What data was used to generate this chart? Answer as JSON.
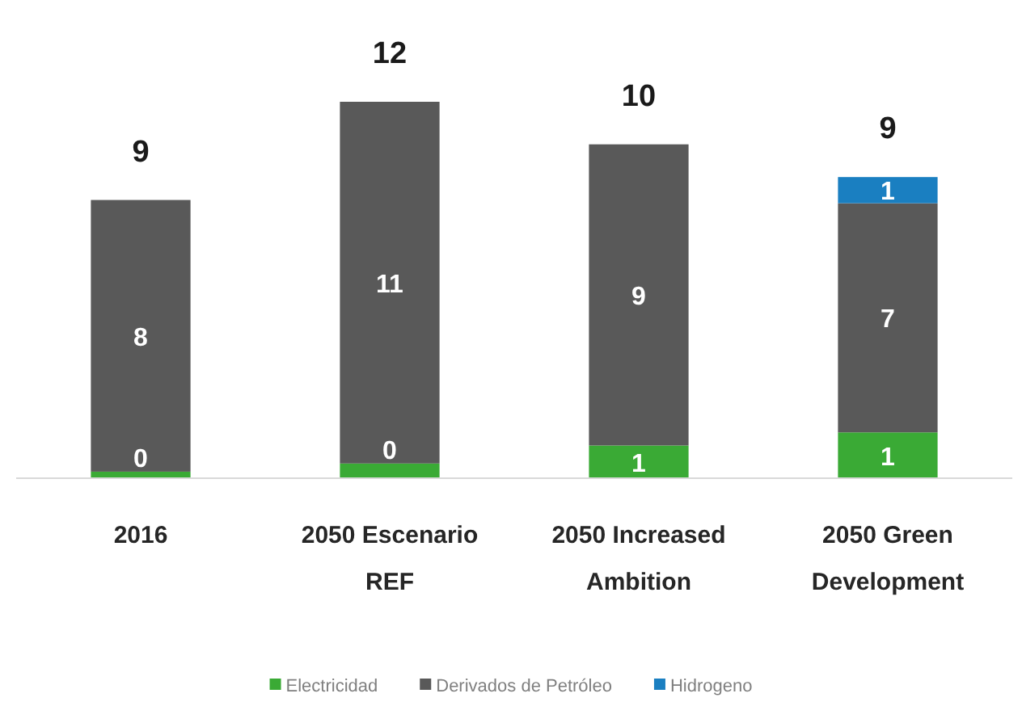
{
  "chart_data": {
    "type": "bar",
    "stacked": true,
    "categories": [
      "2016",
      "2050 Escenario REF",
      "2050 Increased Ambition",
      "2050 Green Development"
    ],
    "series": [
      {
        "name": "Electricidad",
        "color": "#3aaa35",
        "values": [
          0.2,
          0.45,
          1.0,
          1.4
        ],
        "value_labels": [
          "0",
          "0",
          "1",
          "1"
        ]
      },
      {
        "name": "Derivados de Petróleo",
        "color": "#595959",
        "values": [
          8.3,
          11.05,
          9.2,
          7.0
        ],
        "value_labels": [
          "8",
          "11",
          "9",
          "7"
        ]
      },
      {
        "name": "Hidrogeno",
        "color": "#1a7fc1",
        "values": [
          null,
          null,
          null,
          0.8
        ],
        "value_labels": [
          null,
          null,
          null,
          "1"
        ]
      }
    ],
    "totals": [
      "9",
      "12",
      "10",
      "9"
    ],
    "legend": "bottom"
  }
}
